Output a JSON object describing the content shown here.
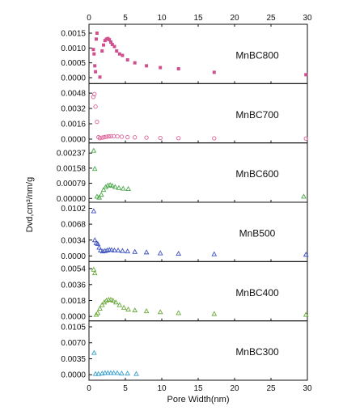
{
  "chart_data": {
    "type": "scatter",
    "xlabel": "Pore Width(nm)",
    "ylabel": "Dvd,cm³/nm/g",
    "xlim": [
      0,
      30
    ],
    "xticks": [
      0,
      5,
      10,
      15,
      20,
      25,
      30
    ],
    "xtick_labels_top": [
      "0",
      "5",
      "10",
      "15",
      "20",
      "25",
      "30"
    ],
    "xtick_labels_bottom": [
      "0",
      "5",
      "10",
      "15",
      "20",
      "25",
      "30"
    ],
    "grid": false,
    "panels": [
      {
        "name": "MnBC800",
        "color": "#d0508f",
        "marker": "filled-square",
        "ylim": [
          -0.0002,
          0.0018
        ],
        "yticks": [
          0.0,
          0.0005,
          0.001,
          0.0015
        ],
        "ytick_labels": [
          "0.0000",
          "0.0005",
          "0.0010",
          "0.0015"
        ],
        "x": [
          0.6,
          0.7,
          0.8,
          0.9,
          1.0,
          1.1,
          1.5,
          1.8,
          2.0,
          2.2,
          2.4,
          2.6,
          2.8,
          3.0,
          3.2,
          3.5,
          3.8,
          4.2,
          4.6,
          5.3,
          6.3,
          7.9,
          9.8,
          12.3,
          17.2,
          29.8
        ],
        "y": [
          0.00095,
          0.0008,
          0.0004,
          0.0002,
          0.0013,
          0.0015,
          2e-05,
          0.0009,
          0.0011,
          0.00125,
          0.0013,
          0.00132,
          0.00128,
          0.0012,
          0.00112,
          0.00105,
          0.0009,
          0.0008,
          0.00075,
          0.0006,
          0.0005,
          0.0004,
          0.00034,
          0.0003,
          0.00018,
          0.0001
        ]
      },
      {
        "name": "MnBC700",
        "color": "#e0609a",
        "marker": "open-circle",
        "ylim": [
          -0.0004,
          0.0058
        ],
        "yticks": [
          0.0,
          0.0016,
          0.0032,
          0.0048
        ],
        "ytick_labels": [
          "0.0000",
          "0.0016",
          "0.0032",
          "0.0048"
        ],
        "x": [
          0.6,
          0.75,
          0.9,
          1.1,
          1.3,
          1.5,
          1.8,
          2.1,
          2.4,
          2.7,
          3.0,
          3.4,
          3.9,
          4.5,
          5.3,
          6.3,
          7.9,
          9.8,
          12.3,
          17.2,
          29.8
        ],
        "y": [
          0.0044,
          0.0047,
          0.0034,
          0.0018,
          0.0002,
          0.0001,
          0.00015,
          0.0002,
          0.00025,
          0.00028,
          0.0003,
          0.0003,
          0.00028,
          0.00025,
          0.0002,
          0.00018,
          0.00015,
          0.00012,
          0.0001,
          8e-05,
          6e-05
        ]
      },
      {
        "name": "MnBC600",
        "color": "#4aa84a",
        "marker": "open-triangle",
        "ylim": [
          -0.0002,
          0.0029
        ],
        "yticks": [
          0.0,
          0.00079,
          0.00158,
          0.00237
        ],
        "ytick_labels": [
          "0.00000",
          "0.00079",
          "0.00158",
          "0.00237"
        ],
        "x": [
          0.65,
          0.8,
          1.1,
          1.4,
          1.7,
          2.0,
          2.3,
          2.6,
          2.9,
          3.2,
          3.6,
          4.1,
          4.7,
          5.4,
          29.5
        ],
        "y": [
          0.0025,
          0.00155,
          0.0001,
          5e-05,
          0.0002,
          0.00045,
          0.0006,
          0.00068,
          0.0007,
          0.00066,
          0.0006,
          0.00055,
          0.00052,
          0.0005,
          0.0001
        ]
      },
      {
        "name": "MnB500",
        "color": "#3a4fc0",
        "marker": "open-triangle",
        "ylim": [
          -0.0012,
          0.0115
        ],
        "yticks": [
          0.0,
          0.0034,
          0.0068,
          0.0102
        ],
        "ytick_labels": [
          "0.0000",
          "0.0034",
          "0.0068",
          "0.0102"
        ],
        "x": [
          0.65,
          0.8,
          1.0,
          1.2,
          1.4,
          1.6,
          1.9,
          2.2,
          2.5,
          2.8,
          3.1,
          3.5,
          4.0,
          4.6,
          5.3,
          6.3,
          7.9,
          9.8,
          12.3,
          17.2,
          29.8
        ],
        "y": [
          0.0096,
          0.0034,
          0.0028,
          0.0026,
          0.0018,
          0.0012,
          0.001,
          0.0011,
          0.0012,
          0.0013,
          0.0013,
          0.0012,
          0.0012,
          0.0011,
          0.001,
          0.0009,
          0.0008,
          0.0006,
          0.0005,
          0.0004,
          0.0003
        ]
      },
      {
        "name": "MnBC400",
        "color": "#6aa83a",
        "marker": "open-triangle",
        "ylim": [
          -0.0005,
          0.0062
        ],
        "yticks": [
          0.0,
          0.0018,
          0.0036,
          0.0054
        ],
        "ytick_labels": [
          "0.0000",
          "0.0018",
          "0.0036",
          "0.0054"
        ],
        "x": [
          0.65,
          0.8,
          1.0,
          1.2,
          1.5,
          1.8,
          2.1,
          2.4,
          2.7,
          3.0,
          3.3,
          3.7,
          4.2,
          4.8,
          5.4,
          6.3,
          7.9,
          9.8,
          12.3,
          17.2,
          29.8
        ],
        "y": [
          0.0053,
          0.0049,
          0.0002,
          0.0004,
          0.0009,
          0.0013,
          0.0016,
          0.0018,
          0.0019,
          0.0019,
          0.0018,
          0.0016,
          0.0013,
          0.001,
          0.0008,
          0.0007,
          0.0006,
          0.0005,
          0.0004,
          0.0003,
          0.0002
        ]
      },
      {
        "name": "MnBC300",
        "color": "#3aa0d0",
        "marker": "open-triangle",
        "ylim": [
          -0.0012,
          0.0118
        ],
        "yticks": [
          0.0,
          0.0035,
          0.007,
          0.0105
        ],
        "ytick_labels": [
          "0.0000",
          "0.0035",
          "0.0070",
          "0.0105"
        ],
        "x": [
          0.7,
          0.9,
          1.3,
          1.8,
          2.2,
          2.6,
          3.0,
          3.4,
          3.9,
          4.5,
          5.3,
          6.5
        ],
        "y": [
          0.0048,
          0.0002,
          0.0002,
          0.0003,
          0.0004,
          0.0004,
          0.0004,
          0.0004,
          0.0004,
          0.0003,
          0.0003,
          0.0002
        ]
      }
    ]
  }
}
